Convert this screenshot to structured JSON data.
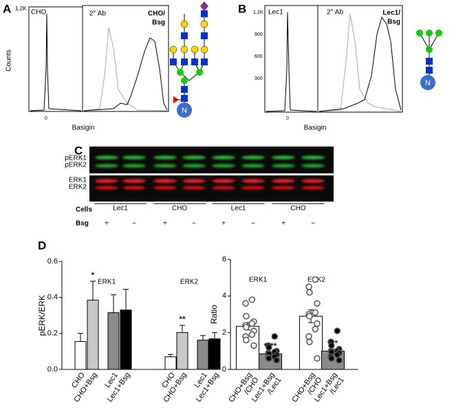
{
  "panel_a": {
    "label": "A",
    "y_label": "Counts",
    "ytick": "1.2K",
    "xtick": "0",
    "x_label": "Basigin",
    "left_title": "CHO",
    "right_title": "2° Ab",
    "sample": [
      "CHO/",
      "Bsg"
    ],
    "glycan_label": "N"
  },
  "panel_b": {
    "label": "B",
    "yticks": [
      "1.2K",
      "900",
      "600",
      "300"
    ],
    "xtick": "0",
    "x_label": "Basigin",
    "left_title": "Lec1",
    "right_title": "2° Ab",
    "sample": [
      "Lec1/",
      "Bsg"
    ],
    "glycan_label": "N"
  },
  "panel_c": {
    "label": "C",
    "top_bands": [
      "pERK1",
      "pERK2"
    ],
    "bottom_bands": [
      "ERK1",
      "ERK2"
    ],
    "cells_label": "Cells",
    "cells": [
      "Lec1",
      "CHO",
      "Lec1",
      "CHO"
    ],
    "bsg_label": "Bsg",
    "bsg": [
      "+",
      "−",
      "+",
      "−",
      "+",
      "−",
      "+",
      "−"
    ]
  },
  "panel_d": {
    "label": "D"
  },
  "chart_data": [
    {
      "type": "bar",
      "y_label": "pERK/ERK",
      "categories": [
        "CHO",
        "CHO+Bsg",
        "Lec1",
        "Lec1+Bsg"
      ],
      "colors": [
        "#ffffff",
        "#c8c8c8",
        "#8a8a8a",
        "#000000"
      ],
      "error_bars": "upper",
      "series": [
        {
          "name": "ERK1",
          "values": [
            0.155,
            0.385,
            0.315,
            0.33
          ],
          "errors": [
            0.045,
            0.105,
            0.1,
            0.115
          ],
          "significance_labels": [
            null,
            "*",
            null,
            null
          ]
        },
        {
          "name": "ERK2",
          "values": [
            0.07,
            0.205,
            0.163,
            0.17
          ],
          "errors": [
            0.013,
            0.04,
            0.025,
            0.035
          ],
          "significance_labels": [
            null,
            "**",
            null,
            null
          ]
        }
      ],
      "ylim": [
        0,
        0.6
      ],
      "yticks": [
        {
          "value": 0,
          "label": "0.0"
        },
        0.2,
        0.4,
        0.6
      ]
    },
    {
      "type": "bar",
      "y_label": "Ratio",
      "categories": [
        [
          "CHO+Bsg",
          "/CHO"
        ],
        [
          "Lec1+Bsg",
          "/Lec1"
        ]
      ],
      "colors": [
        "#ffffff",
        "#8a8a8a"
      ],
      "point_colors": [
        "#ffffff",
        "#000000"
      ],
      "error_bars": "both",
      "series": [
        {
          "name": "ERK1",
          "values": [
            2.35,
            0.85
          ],
          "errors": [
            0.2,
            0.1
          ],
          "significance_labels": [
            null,
            "****"
          ],
          "points": [
            [
              3.8,
              3.6,
              2.9,
              2.6,
              2.5,
              2.4,
              2.3,
              2.1,
              1.9,
              1.8,
              1.6,
              1.3
            ],
            [
              1.8,
              1.3,
              1.2,
              1.0,
              0.95,
              0.9,
              0.85,
              0.8,
              0.7,
              0.65,
              0.6,
              0.5
            ]
          ]
        },
        {
          "name": "ERK2",
          "values": [
            2.9,
            1.0
          ],
          "errors": [
            0.35,
            0.1
          ],
          "significance_labels": [
            null,
            "***"
          ],
          "points": [
            [
              4.9,
              4.5,
              4.2,
              3.6,
              3.1,
              3.0,
              2.9,
              2.5,
              2.2,
              1.8,
              1.5,
              0.6
            ],
            [
              2.1,
              1.5,
              1.3,
              1.1,
              1.0,
              1.0,
              0.95,
              0.9,
              0.8,
              0.7,
              0.6,
              0.5
            ]
          ]
        }
      ],
      "ylim": [
        0,
        6
      ],
      "yticks": [
        0,
        2,
        4,
        6
      ]
    }
  ]
}
